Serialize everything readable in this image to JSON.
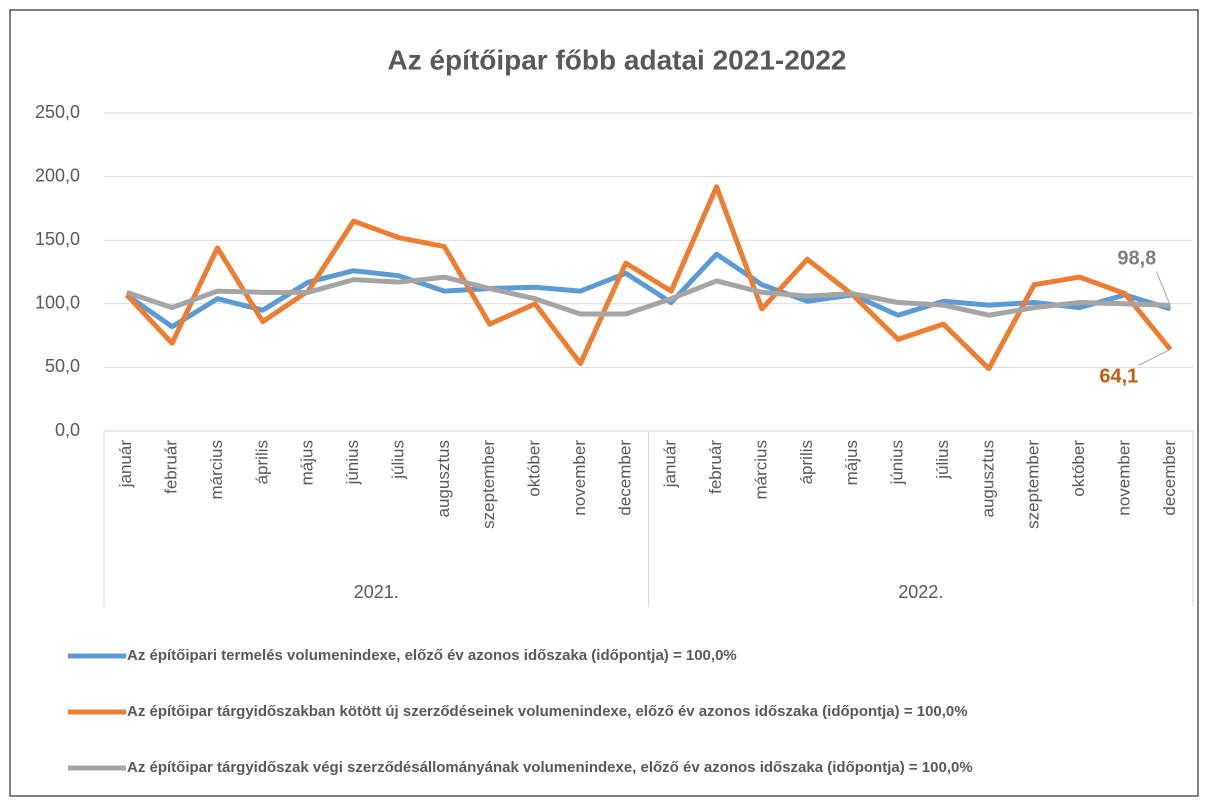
{
  "chart_data": {
    "type": "line",
    "title": "Az építőipar főbb adatai 2021-2022",
    "categories": [
      "január",
      "február",
      "március",
      "április",
      "május",
      "június",
      "július",
      "augusztus",
      "szeptember",
      "október",
      "november",
      "december",
      "január",
      "február",
      "március",
      "április",
      "május",
      "június",
      "július",
      "augusztus",
      "szeptember",
      "október",
      "november",
      "december"
    ],
    "category_groups": [
      "2021.",
      "2022."
    ],
    "series": [
      {
        "name": "Az építőipari termelés volumenindexe, előző év azonos időszaka (időpontja) = 100,0%",
        "color": "#5b9bd5",
        "values": [
          107,
          82,
          104,
          95,
          117,
          126,
          122,
          110,
          112,
          113,
          110,
          124,
          101,
          139,
          115,
          102,
          107,
          91,
          102,
          99,
          101,
          97,
          107,
          96
        ]
      },
      {
        "name": "Az építőipar tárgyidőszakban kötött új szerződéseinek volumenindexe, előző év azonos időszaka (időpontja) = 100,0%",
        "color": "#ed7d31",
        "values": [
          107,
          69,
          144,
          86,
          110,
          165,
          152,
          145,
          84,
          100,
          53,
          132,
          110,
          192,
          96,
          135,
          107,
          72,
          84,
          49,
          115,
          121,
          108,
          64.1
        ],
        "value_labels": [
          null,
          null,
          null,
          null,
          null,
          null,
          null,
          null,
          null,
          null,
          null,
          null,
          null,
          null,
          null,
          null,
          null,
          null,
          null,
          null,
          null,
          null,
          null,
          "64,1"
        ]
      },
      {
        "name": "Az építőipar tárgyidőszak végi szerződésállományának volumenindexe, előző év azonos időszaka (időpontja) = 100,0%",
        "color": "#a5a5a5",
        "values": [
          109,
          97,
          110,
          109,
          109,
          119,
          117,
          121,
          112,
          104,
          92,
          92,
          104,
          118,
          109,
          106,
          108,
          101,
          99,
          91,
          97,
          101,
          100,
          98.8
        ],
        "value_labels": [
          null,
          null,
          null,
          null,
          null,
          null,
          null,
          null,
          null,
          null,
          null,
          null,
          null,
          null,
          null,
          null,
          null,
          null,
          null,
          null,
          null,
          null,
          null,
          "98,8"
        ]
      }
    ],
    "ylim": [
      0,
      250
    ],
    "yticks": [
      {
        "value": 0,
        "label": "0,0"
      },
      {
        "value": 50,
        "label": "50,0"
      },
      {
        "value": 100,
        "label": "100,0"
      },
      {
        "value": 150,
        "label": "150,0"
      },
      {
        "value": 200,
        "label": "200,0"
      },
      {
        "value": 250,
        "label": "250,0"
      }
    ],
    "grid": true,
    "legend": "bottom"
  }
}
